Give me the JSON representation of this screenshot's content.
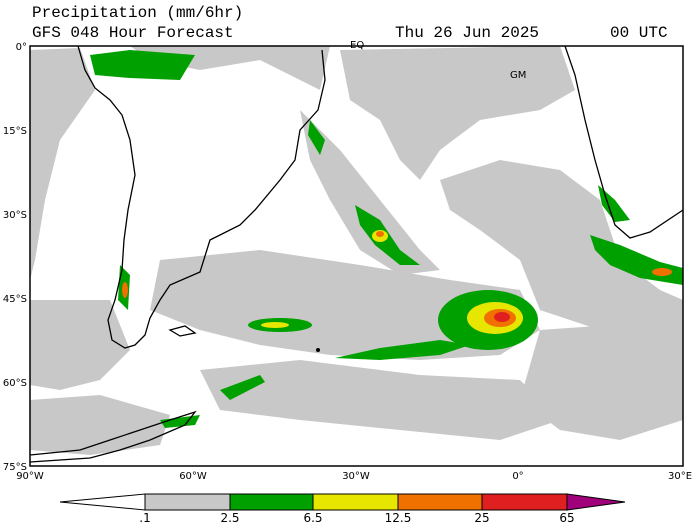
{
  "header": {
    "title": "Precipitation (mm/6hr)",
    "subtitle": "GFS 048 Hour Forecast",
    "date": "Thu 26 Jun 2025",
    "time": "00 UTC"
  },
  "map": {
    "lat_labels": [
      "0°",
      "15°S",
      "30°S",
      "45°S",
      "60°S",
      "75°S"
    ],
    "lon_labels": [
      "90°W",
      "60°W",
      "30°W",
      "0°",
      "30°E"
    ],
    "place_labels": [
      "EQ",
      "GM"
    ]
  },
  "colorbar": {
    "labels": [
      ".1",
      "2.5",
      "6.5",
      "12.5",
      "25",
      "65"
    ]
  }
}
